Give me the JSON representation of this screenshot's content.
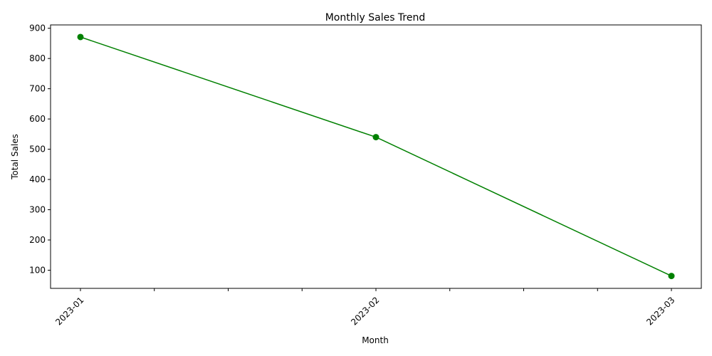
{
  "chart_data": {
    "type": "line",
    "title": "Monthly Sales Trend",
    "xlabel": "Month",
    "ylabel": "Total Sales",
    "x": [
      "2023-01",
      "2023-02",
      "2023-03"
    ],
    "x_ticks_labeled": [
      "2023-01",
      "2023-02",
      "2023-03"
    ],
    "minor_ticks_between": 3,
    "series": [
      {
        "values": [
          871,
          540,
          81
        ],
        "color": "#008000",
        "marker": "circle"
      }
    ],
    "ylim": [
      40,
      911
    ],
    "yticks": [
      100,
      200,
      300,
      400,
      500,
      600,
      700,
      800,
      900
    ],
    "grid": false,
    "legend": "none",
    "x_tick_rotation": 45
  }
}
